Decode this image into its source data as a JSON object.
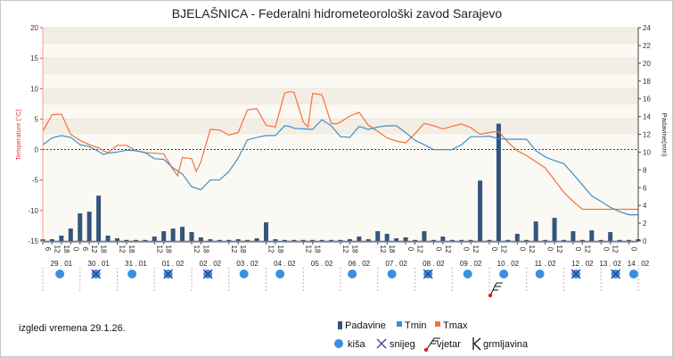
{
  "chart_data": {
    "type": "line",
    "title": "BJELAŠNICA - Federalni hidrometeorološki zavod Sarajevo",
    "ylabel_left": "Temperature (°C)",
    "ylabel_right": "Padavine(mm)",
    "y_left_range": [
      -15,
      20
    ],
    "y_right_range": [
      0,
      24
    ],
    "y_left_ticks": [
      20,
      15,
      10,
      5,
      0,
      -5,
      -10,
      -15
    ],
    "y_right_ticks": [
      24,
      22,
      20,
      18,
      16,
      14,
      12,
      10,
      8,
      6,
      4,
      2,
      0
    ],
    "x_range": [
      0,
      128
    ],
    "hour_ticks": [
      {
        "x": 0,
        "label": "6"
      },
      {
        "x": 2,
        "label": "12"
      },
      {
        "x": 4,
        "label": "18"
      },
      {
        "x": 6,
        "label": "0"
      },
      {
        "x": 8,
        "label": "6"
      },
      {
        "x": 10,
        "label": "12"
      },
      {
        "x": 12,
        "label": "18"
      },
      {
        "x": 16,
        "label": "12"
      },
      {
        "x": 18,
        "label": "18"
      },
      {
        "x": 24,
        "label": "12"
      },
      {
        "x": 26,
        "label": "18"
      },
      {
        "x": 32,
        "label": "12"
      },
      {
        "x": 34,
        "label": "18"
      },
      {
        "x": 40,
        "label": "12"
      },
      {
        "x": 42,
        "label": "18"
      },
      {
        "x": 48,
        "label": "12"
      },
      {
        "x": 50,
        "label": "18"
      },
      {
        "x": 56,
        "label": "12"
      },
      {
        "x": 58,
        "label": "18"
      },
      {
        "x": 64,
        "label": "12"
      },
      {
        "x": 66,
        "label": "18"
      },
      {
        "x": 72,
        "label": "12"
      },
      {
        "x": 74,
        "label": "18"
      },
      {
        "x": 78,
        "label": "0"
      },
      {
        "x": 80,
        "label": "12"
      },
      {
        "x": 84,
        "label": "0"
      },
      {
        "x": 86,
        "label": "12"
      },
      {
        "x": 90,
        "label": "0"
      },
      {
        "x": 92,
        "label": "12"
      },
      {
        "x": 96,
        "label": "0"
      },
      {
        "x": 98,
        "label": "12"
      },
      {
        "x": 102,
        "label": "0"
      },
      {
        "x": 104,
        "label": "12"
      },
      {
        "x": 108,
        "label": "0"
      },
      {
        "x": 110,
        "label": "12"
      },
      {
        "x": 114,
        "label": "0"
      },
      {
        "x": 116,
        "label": "12"
      },
      {
        "x": 120,
        "label": "0"
      },
      {
        "x": 122,
        "label": "12"
      },
      {
        "x": 126,
        "label": "0"
      }
    ],
    "dates": [
      {
        "x": 4,
        "label": "29 . 01"
      },
      {
        "x": 12,
        "label": "30 . 01"
      },
      {
        "x": 20,
        "label": "31 . 01"
      },
      {
        "x": 28,
        "label": "01 . 02"
      },
      {
        "x": 36,
        "label": "02 . 02"
      },
      {
        "x": 44,
        "label": "03 . 02"
      },
      {
        "x": 52,
        "label": "04 . 02"
      },
      {
        "x": 60,
        "label": "05 . 02"
      },
      {
        "x": 68,
        "label": "06 . 02"
      },
      {
        "x": 76,
        "label": "07 . 02"
      },
      {
        "x": 84,
        "label": "08 . 02"
      },
      {
        "x": 92,
        "label": "09 . 02"
      },
      {
        "x": 100,
        "label": "10 . 02"
      },
      {
        "x": 108,
        "label": "11 . 02"
      },
      {
        "x": 116,
        "label": "12 . 02"
      },
      {
        "x": 122,
        "label": "13 . 02"
      },
      {
        "x": 128,
        "label": "14 . 02"
      }
    ],
    "series": [
      {
        "name": "Tmax",
        "color": "#f4713a",
        "x": [
          0,
          2,
          4,
          6,
          8,
          10,
          12,
          13,
          14,
          16,
          18,
          20,
          22,
          24,
          26,
          28,
          29,
          30,
          32,
          33,
          34,
          36,
          38,
          40,
          42,
          44,
          46,
          48,
          50,
          52,
          53,
          54,
          56,
          57,
          58,
          60,
          62,
          63,
          64,
          66,
          68,
          70,
          72,
          74,
          76,
          78,
          80,
          82,
          84,
          86,
          88,
          90,
          92,
          94,
          96,
          98,
          100,
          102,
          104,
          106,
          108,
          110,
          112,
          114,
          116,
          118,
          120,
          122,
          124,
          126,
          128
        ],
        "y": [
          3,
          5.7,
          5.8,
          2.5,
          1.5,
          0.8,
          0.3,
          -0.2,
          -0.5,
          0.7,
          0.7,
          -0.2,
          -0.5,
          -0.6,
          -0.7,
          -3.3,
          -4.3,
          -1.3,
          -1.5,
          -3.6,
          -2,
          3.3,
          3.2,
          2.4,
          2.8,
          6.5,
          6.7,
          4,
          3.7,
          9.3,
          9.5,
          9.4,
          4.5,
          3.7,
          9.2,
          9,
          4.3,
          4.2,
          4.5,
          5.5,
          6.1,
          4,
          3,
          1.9,
          1.4,
          1.1,
          2.6,
          4.3,
          3.9,
          3.4,
          3.8,
          4.2,
          3.6,
          2.5,
          2.8,
          3,
          1.2,
          -0.2,
          -1,
          -2,
          -3,
          -5,
          -7,
          -8.5,
          -9.8,
          -9.8,
          -9.8,
          -9.8,
          -9.8,
          -9.8,
          -9.8
        ]
      },
      {
        "name": "Tmin",
        "color": "#3b8fd0",
        "x": [
          0,
          2,
          4,
          6,
          8,
          10,
          12,
          13,
          14,
          16,
          18,
          20,
          22,
          24,
          26,
          28,
          30,
          32,
          34,
          36,
          38,
          40,
          42,
          44,
          46,
          48,
          50,
          52,
          53,
          54,
          56,
          58,
          60,
          62,
          64,
          66,
          68,
          70,
          72,
          74,
          76,
          78,
          80,
          82,
          84,
          86,
          88,
          90,
          92,
          94,
          96,
          98,
          100,
          102,
          104,
          106,
          108,
          110,
          112,
          114,
          116,
          118,
          120,
          122,
          124,
          126,
          128
        ],
        "y": [
          0.8,
          1.9,
          2.3,
          2,
          0.8,
          0.5,
          -0.3,
          -0.8,
          -0.6,
          -0.4,
          -0.1,
          -0.2,
          -0.5,
          -1.5,
          -1.6,
          -3,
          -4,
          -6.1,
          -6.6,
          -5,
          -5,
          -3.6,
          -1.4,
          1.6,
          2,
          2.3,
          2.3,
          3.9,
          3.8,
          3.5,
          3.4,
          3.3,
          4.9,
          3.9,
          2.1,
          2,
          3.8,
          3.3,
          3.7,
          3.9,
          3.9,
          2.8,
          1.5,
          0.8,
          0,
          0,
          0,
          0.8,
          2.1,
          2.1,
          2.2,
          1.8,
          1.7,
          1.7,
          1.7,
          -0.2,
          -1.2,
          -1.8,
          -2.3,
          -4,
          -5.8,
          -7.6,
          -8.5,
          -9.5,
          -10.2,
          -10.7,
          -10.7
        ]
      },
      {
        "name": "Padavine",
        "color": "#34557e",
        "x": [
          0,
          2,
          4,
          6,
          8,
          10,
          12,
          14,
          16,
          18,
          20,
          22,
          24,
          26,
          28,
          30,
          32,
          34,
          36,
          38,
          40,
          42,
          44,
          46,
          48,
          50,
          52,
          54,
          56,
          58,
          60,
          62,
          64,
          66,
          68,
          70,
          72,
          74,
          76,
          78,
          80,
          82,
          84,
          86,
          88,
          90,
          92,
          94,
          96,
          98,
          100,
          102,
          104,
          106,
          108,
          110,
          112,
          114,
          116,
          118,
          120,
          122,
          124,
          126,
          128
        ],
        "y": [
          0.2,
          0.2,
          0.6,
          1.4,
          3.1,
          3.3,
          5.1,
          0.6,
          0.3,
          0,
          0,
          0,
          0.5,
          1.1,
          1.4,
          1.6,
          1,
          0.4,
          0.2,
          0.1,
          0,
          0.2,
          0.1,
          0.3,
          2.1,
          0.2,
          0,
          0,
          0,
          0.1,
          0,
          0,
          0,
          0.2,
          0.5,
          0.2,
          1.1,
          0.8,
          0.3,
          0.4,
          0,
          1.1,
          0,
          0.5,
          0.1,
          0,
          0,
          6.8,
          0,
          13.2,
          0,
          0.8,
          0,
          2.2,
          0,
          2.6,
          0,
          1.1,
          0,
          1.2,
          0,
          1,
          0.1,
          0,
          0.2
        ]
      }
    ],
    "weather_symbols": [
      {
        "x": 4,
        "type": "kiša"
      },
      {
        "x": 14,
        "type": "snijeg"
      },
      {
        "x": 24,
        "type": "kiša"
      },
      {
        "x": 34,
        "type": "snijeg"
      },
      {
        "x": 45,
        "type": "snijeg"
      },
      {
        "x": 55,
        "type": "kiša"
      },
      {
        "x": 65,
        "type": "kiša"
      },
      {
        "x": 85,
        "type": "kiša"
      },
      {
        "x": 96,
        "type": "kiša"
      },
      {
        "x": 106,
        "type": "snijeg"
      },
      {
        "x": 117,
        "type": "kiša"
      },
      {
        "x": 127,
        "type": "kiša"
      },
      {
        "x": 137,
        "type": "kiša"
      },
      {
        "x": 147,
        "type": "snijeg"
      },
      {
        "x": 158,
        "type": "snijeg"
      },
      {
        "x": 163,
        "type": "kiša"
      }
    ],
    "wind_symbol_x": 123,
    "legend": {
      "padavine": "Padavine",
      "tmin": "Tmin",
      "tmax": "Tmax",
      "kisa": "kiša",
      "snijeg": "snijeg",
      "vjetar": "vjetar",
      "grmljavina": "grmljavina"
    },
    "issue_text": "izgledi vremena 29.1.26."
  }
}
